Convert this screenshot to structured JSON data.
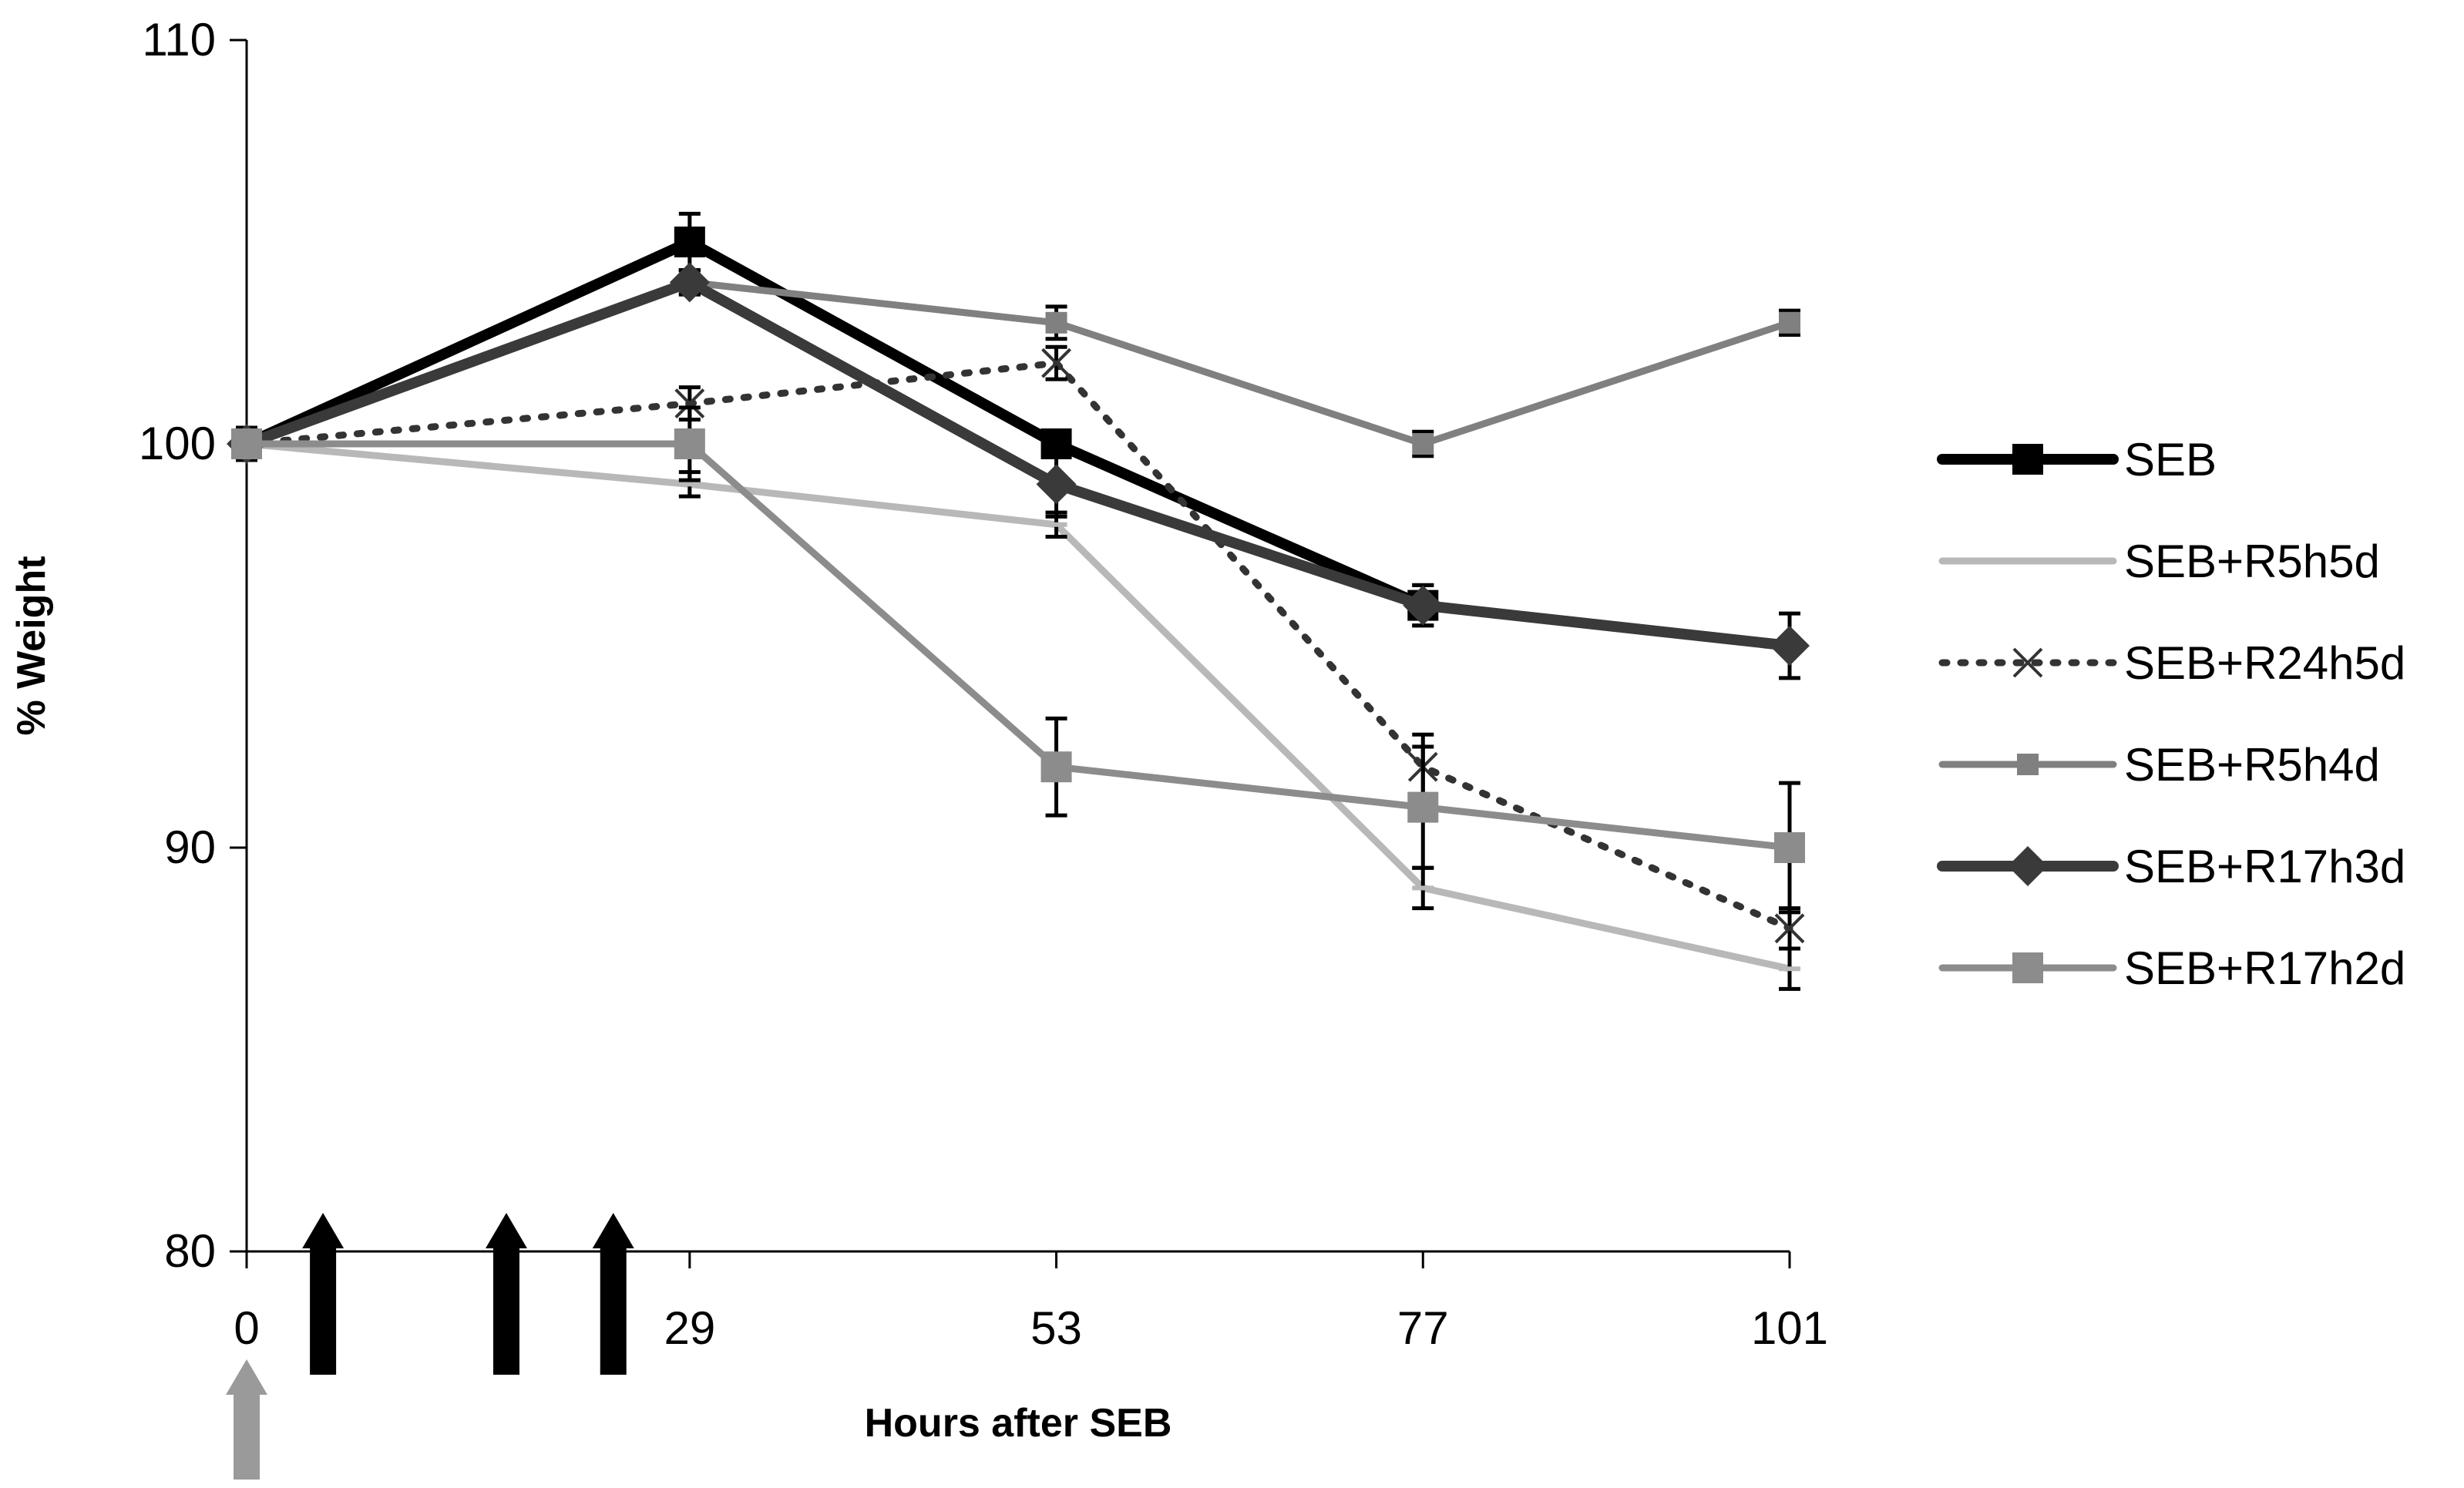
{
  "chart_data": {
    "type": "line",
    "title": "",
    "xlabel": "Hours after SEB",
    "ylabel": "% Weight",
    "x": [
      0,
      29,
      53,
      77,
      101
    ],
    "x_tick_labels": [
      "0",
      "29",
      "53",
      "77",
      "101"
    ],
    "y_ticks": [
      80,
      90,
      100,
      110
    ],
    "y_tick_labels": [
      "80",
      "90",
      "100",
      "110"
    ],
    "ylim": [
      80,
      110
    ],
    "grid": false,
    "legend_position": "right",
    "series": [
      {
        "name": "SEB",
        "values": [
          100,
          105,
          100,
          96,
          null
        ],
        "errors": [
          0.3,
          0.7,
          0.3,
          0.5,
          null
        ],
        "color": "#000000",
        "marker": "square",
        "dash": "solid",
        "weight": "heavy"
      },
      {
        "name": "SEB+R5h5d",
        "values": [
          100,
          99,
          98,
          89,
          87
        ],
        "errors": [
          0.3,
          0.3,
          0.3,
          0.5,
          0.5
        ],
        "color": "#b8b8b8",
        "marker": "dash",
        "dash": "solid",
        "weight": "medium"
      },
      {
        "name": "SEB+R24h5d",
        "values": [
          100,
          101,
          102,
          92,
          88
        ],
        "errors": [
          0.4,
          0.4,
          0.4,
          0.8,
          0.5
        ],
        "color": "#333333",
        "marker": "x",
        "dash": "dotted",
        "weight": "medium"
      },
      {
        "name": "SEB+R5h4d",
        "values": [
          100,
          104,
          103,
          100,
          103
        ],
        "errors": [
          0.3,
          0.3,
          0.4,
          0.3,
          0.3
        ],
        "color": "#808080",
        "marker": "square-small",
        "dash": "solid",
        "weight": "medium"
      },
      {
        "name": "SEB+R17h3d",
        "values": [
          100,
          104,
          99,
          96,
          95
        ],
        "errors": [
          0.3,
          0.3,
          0.8,
          0.5,
          0.8
        ],
        "color": "#3a3a3a",
        "marker": "diamond",
        "dash": "solid",
        "weight": "heavy"
      },
      {
        "name": "SEB+R17h2d",
        "values": [
          100,
          100,
          92,
          91,
          90
        ],
        "errors": [
          0.3,
          0.9,
          1.2,
          1.5,
          1.6
        ],
        "color": "#8c8c8c",
        "marker": "square",
        "dash": "solid",
        "weight": "medium"
      }
    ],
    "annotations": [
      {
        "type": "arrow-up",
        "x": 0,
        "color": "#9a9a9a",
        "note": "SEB challenge",
        "position": "below-axis"
      },
      {
        "type": "arrow-up",
        "x": 5,
        "color": "#000000",
        "note": "treatment",
        "position": "above-axis"
      },
      {
        "type": "arrow-up",
        "x": 17,
        "color": "#000000",
        "note": "treatment",
        "position": "above-axis"
      },
      {
        "type": "arrow-up",
        "x": 24,
        "color": "#000000",
        "note": "treatment",
        "position": "above-axis"
      }
    ]
  }
}
